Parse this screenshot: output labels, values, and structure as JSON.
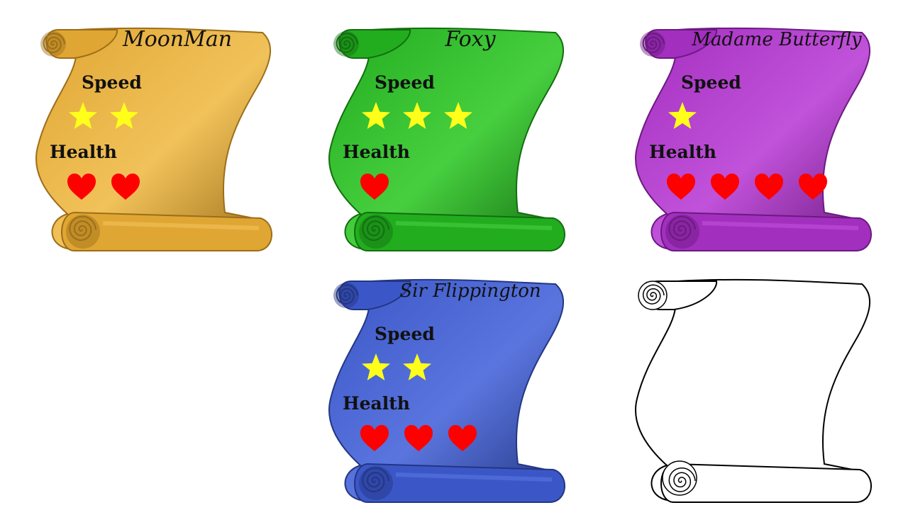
{
  "cards": [
    {
      "id": "moonman",
      "name": "MoonMan",
      "speed_label": "Speed",
      "health_label": "Health",
      "speed": 2,
      "health": 2,
      "colors": {
        "main": "#e0a633",
        "dark": "#9c6e19",
        "light": "#f1c25a"
      },
      "icon": "scroll-icon"
    },
    {
      "id": "foxy",
      "name": "Foxy",
      "speed_label": "Speed",
      "health_label": "Health",
      "speed": 3,
      "health": 1,
      "colors": {
        "main": "#22ad1f",
        "dark": "#136e10",
        "light": "#47cf3f"
      },
      "icon": "scroll-icon"
    },
    {
      "id": "butterfly",
      "name": "Madame Butterfly",
      "speed_label": "Speed",
      "health_label": "Health",
      "speed": 1,
      "health": 4,
      "colors": {
        "main": "#a32fbf",
        "dark": "#6b1a80",
        "light": "#c152da"
      },
      "icon": "scroll-icon"
    },
    {
      "id": "flippington",
      "name": "Sir Flippington",
      "speed_label": "Speed",
      "health_label": "Health",
      "speed": 2,
      "health": 3,
      "colors": {
        "main": "#3b57c7",
        "dark": "#233682",
        "light": "#5a75de"
      },
      "icon": "scroll-icon"
    },
    {
      "id": "blank",
      "name": "",
      "speed_label": "",
      "health_label": "",
      "speed": 0,
      "health": 0,
      "colors": {
        "main": "#ffffff",
        "dark": "#000000",
        "light": "#ffffff"
      },
      "icon": "scroll-outline-icon"
    }
  ],
  "icons": {
    "speed": "star-icon",
    "health": "heart-icon",
    "star_color": "#ffff1a",
    "heart_color": "#ff0000"
  }
}
